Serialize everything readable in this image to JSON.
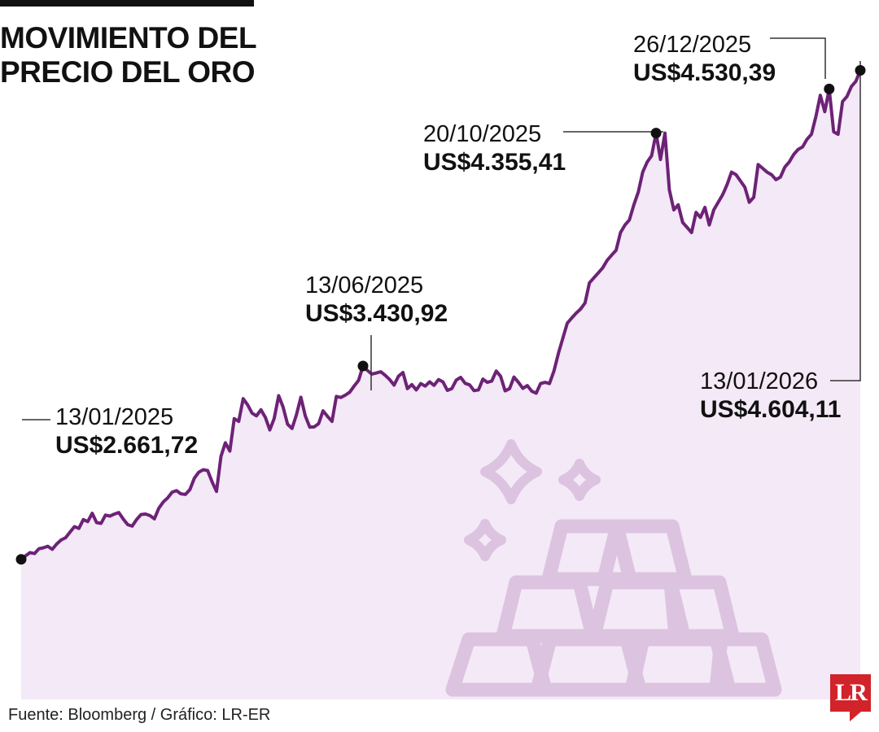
{
  "title_lines": [
    "MOVIMIENTO DEL",
    "PRECIO DEL ORO"
  ],
  "source": "Fuente: Bloomberg / Gráfico: LR-ER",
  "logo_text": "LR",
  "colors": {
    "line": "#6d2277",
    "fill": "#f4e9f6",
    "icon": "#dcc3e0",
    "dot": "#111111"
  },
  "chart_data": {
    "type": "area",
    "title": "MOVIMIENTO DEL PRECIO DEL ORO",
    "xlabel": "",
    "ylabel": "US$",
    "x_range": [
      "13/01/2025",
      "13/01/2026"
    ],
    "ylim": [
      2500,
      4700
    ],
    "grid": false,
    "series": [
      {
        "name": "Precio del oro (US$)",
        "values": [
          2662,
          2676,
          2689,
          2685,
          2704,
          2708,
          2714,
          2702,
          2723,
          2739,
          2748,
          2770,
          2792,
          2785,
          2820,
          2812,
          2845,
          2808,
          2805,
          2838,
          2834,
          2842,
          2848,
          2822,
          2800,
          2794,
          2820,
          2840,
          2842,
          2836,
          2823,
          2865,
          2890,
          2906,
          2929,
          2935,
          2922,
          2920,
          2939,
          2984,
          3008,
          3018,
          3015,
          2970,
          2932,
          3071,
          3125,
          3092,
          3221,
          3210,
          3300,
          3276,
          3243,
          3232,
          3256,
          3226,
          3176,
          3222,
          3312,
          3267,
          3199,
          3182,
          3236,
          3306,
          3232,
          3187,
          3188,
          3201,
          3252,
          3230,
          3210,
          3309,
          3305,
          3314,
          3326,
          3350,
          3373,
          3430,
          3412,
          3398,
          3402,
          3407,
          3393,
          3376,
          3354,
          3390,
          3404,
          3340,
          3356,
          3335,
          3360,
          3350,
          3367,
          3353,
          3376,
          3367,
          3333,
          3340,
          3374,
          3385,
          3361,
          3355,
          3332,
          3335,
          3378,
          3365,
          3370,
          3410,
          3389,
          3331,
          3340,
          3386,
          3365,
          3341,
          3352,
          3330,
          3322,
          3360,
          3365,
          3360,
          3410,
          3480,
          3540,
          3600,
          3620,
          3640,
          3656,
          3680,
          3760,
          3780,
          3800,
          3820,
          3850,
          3870,
          3890,
          3960,
          3990,
          4010,
          4070,
          4120,
          4200,
          4240,
          4265,
          4355,
          4250,
          4355,
          4130,
          4050,
          4070,
          4000,
          3980,
          3960,
          4040,
          4020,
          4060,
          3990,
          4050,
          4080,
          4110,
          4150,
          4200,
          4190,
          4165,
          4140,
          4080,
          4100,
          4230,
          4215,
          4200,
          4190,
          4170,
          4180,
          4220,
          4240,
          4270,
          4290,
          4300,
          4330,
          4350,
          4420,
          4505,
          4440,
          4530,
          4360,
          4350,
          4480,
          4500,
          4540,
          4560,
          4604
        ]
      }
    ],
    "annotations": [
      {
        "date": "13/01/2025",
        "value": "US$2.661,72",
        "index": 0
      },
      {
        "date": "13/06/2025",
        "value": "US$3.430,92",
        "index": 77
      },
      {
        "date": "20/10/2025",
        "value": "US$4.355,41",
        "index": 143
      },
      {
        "date": "26/12/2025",
        "value": "US$4.530,39",
        "index": 182
      },
      {
        "date": "13/01/2026",
        "value": "US$4.604,11",
        "index": 189
      }
    ]
  }
}
